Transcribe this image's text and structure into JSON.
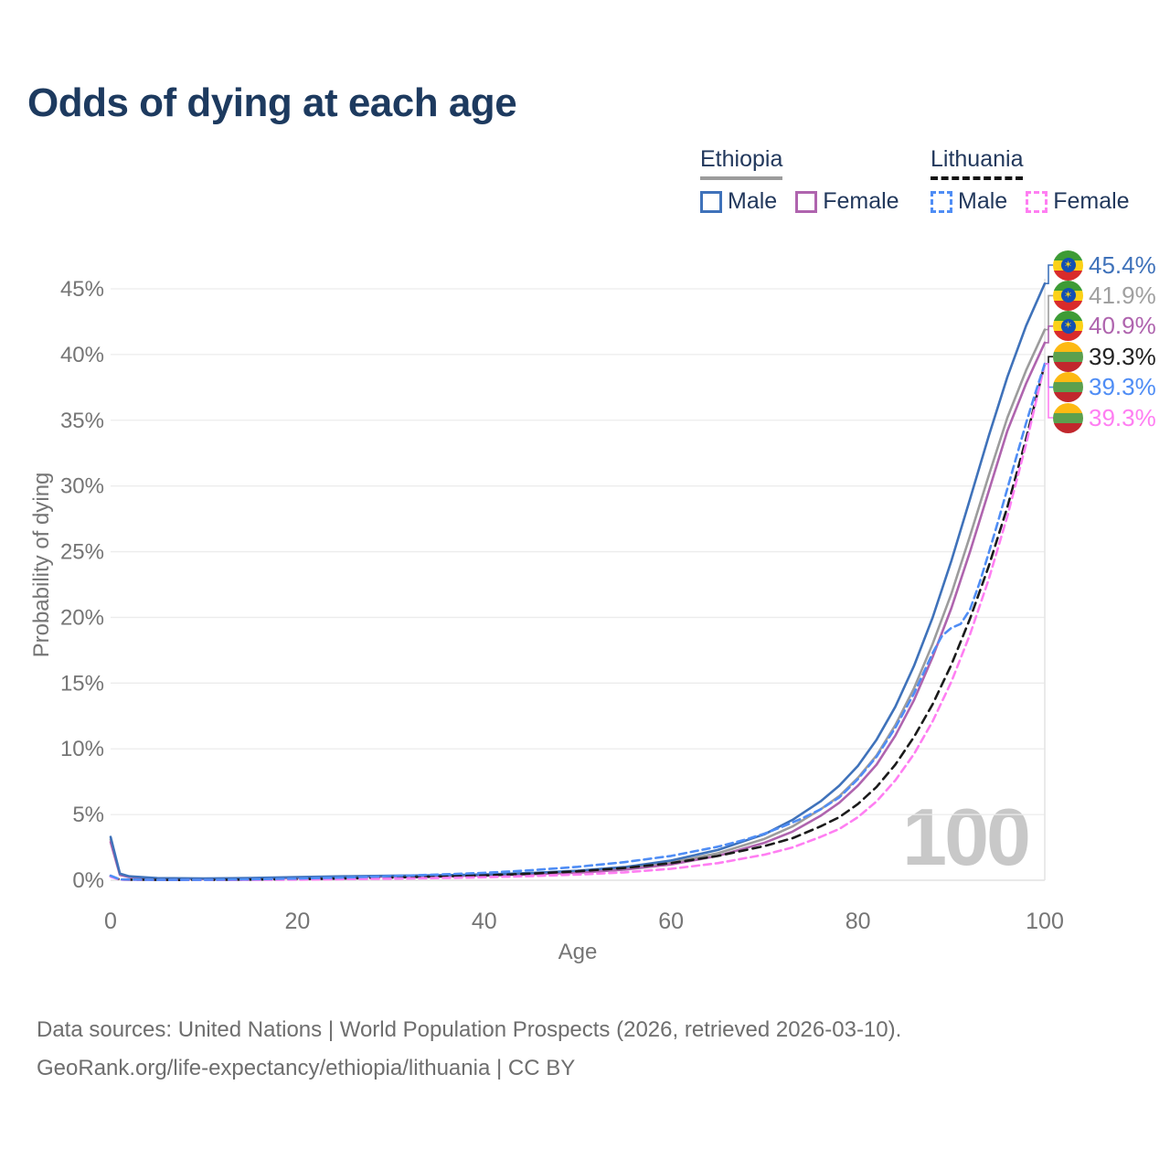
{
  "title": "Odds of dying at each age",
  "legend": {
    "groups": [
      {
        "label": "Ethiopia",
        "line_style": "solid",
        "underline_color": "#9c9c9c",
        "items": [
          {
            "label": "Male",
            "color": "#3f72ba"
          },
          {
            "label": "Female",
            "color": "#af64ae"
          }
        ]
      },
      {
        "label": "Lithuania",
        "line_style": "dashed",
        "underline_color": "#141414",
        "items": [
          {
            "label": "Male",
            "color": "#4f8df5"
          },
          {
            "label": "Female",
            "color": "#ff7ef2"
          }
        ]
      }
    ]
  },
  "chart_data": {
    "type": "line",
    "title": "Odds of dying at each age",
    "xlabel": "Age",
    "ylabel": "Probability of dying",
    "xlim": [
      0,
      100
    ],
    "ylim": [
      0,
      45
    ],
    "grid": "horizontal",
    "legend_position": "top-right",
    "crosshair_age": 100,
    "watermark": "100",
    "x_ticks": [
      {
        "value": 0,
        "label": "0"
      },
      {
        "value": 20,
        "label": "20"
      },
      {
        "value": 40,
        "label": "40"
      },
      {
        "value": 60,
        "label": "60"
      },
      {
        "value": 80,
        "label": "80"
      },
      {
        "value": 100,
        "label": "100"
      }
    ],
    "y_ticks": [
      {
        "value": 0,
        "label": "0%"
      },
      {
        "value": 5,
        "label": "5%"
      },
      {
        "value": 10,
        "label": "10%"
      },
      {
        "value": 15,
        "label": "15%"
      },
      {
        "value": 20,
        "label": "20%"
      },
      {
        "value": 25,
        "label": "25%"
      },
      {
        "value": 30,
        "label": "30%"
      },
      {
        "value": 35,
        "label": "35%"
      },
      {
        "value": 40,
        "label": "40%"
      },
      {
        "value": 45,
        "label": "45%"
      }
    ],
    "series": [
      {
        "id": "ethiopia-both",
        "country": "Ethiopia",
        "sex": "Both sexes",
        "color": "#9c9c9c",
        "dashed": false,
        "end_value_pct": 41.9,
        "end_label": "41.9%",
        "points": [
          [
            0,
            3.1
          ],
          [
            1,
            0.45
          ],
          [
            2,
            0.27
          ],
          [
            5,
            0.14
          ],
          [
            10,
            0.11
          ],
          [
            15,
            0.15
          ],
          [
            20,
            0.21
          ],
          [
            25,
            0.27
          ],
          [
            30,
            0.31
          ],
          [
            35,
            0.35
          ],
          [
            40,
            0.4
          ],
          [
            45,
            0.5
          ],
          [
            50,
            0.64
          ],
          [
            55,
            0.9
          ],
          [
            60,
            1.35
          ],
          [
            65,
            2.05
          ],
          [
            70,
            3.15
          ],
          [
            73,
            4.1
          ],
          [
            76,
            5.4
          ],
          [
            78,
            6.4
          ],
          [
            80,
            7.8
          ],
          [
            82,
            9.5
          ],
          [
            84,
            11.8
          ],
          [
            86,
            14.6
          ],
          [
            88,
            18.0
          ],
          [
            90,
            21.8
          ],
          [
            92,
            26.2
          ],
          [
            94,
            30.8
          ],
          [
            96,
            35.2
          ],
          [
            98,
            38.8
          ],
          [
            100,
            41.9
          ]
        ]
      },
      {
        "id": "ethiopia-female",
        "country": "Ethiopia",
        "sex": "Female",
        "color": "#af64ae",
        "dashed": false,
        "end_value_pct": 40.9,
        "end_label": "40.9%",
        "points": [
          [
            0,
            2.9
          ],
          [
            1,
            0.4
          ],
          [
            2,
            0.24
          ],
          [
            5,
            0.12
          ],
          [
            10,
            0.1
          ],
          [
            15,
            0.13
          ],
          [
            20,
            0.18
          ],
          [
            25,
            0.24
          ],
          [
            30,
            0.28
          ],
          [
            35,
            0.32
          ],
          [
            40,
            0.36
          ],
          [
            45,
            0.45
          ],
          [
            50,
            0.58
          ],
          [
            55,
            0.8
          ],
          [
            60,
            1.2
          ],
          [
            65,
            1.85
          ],
          [
            70,
            2.85
          ],
          [
            73,
            3.7
          ],
          [
            76,
            4.9
          ],
          [
            78,
            5.9
          ],
          [
            80,
            7.2
          ],
          [
            82,
            8.8
          ],
          [
            84,
            11.0
          ],
          [
            86,
            13.7
          ],
          [
            88,
            17.0
          ],
          [
            90,
            20.7
          ],
          [
            92,
            25.0
          ],
          [
            94,
            29.6
          ],
          [
            96,
            34.2
          ],
          [
            98,
            37.8
          ],
          [
            100,
            40.9
          ]
        ]
      },
      {
        "id": "ethiopia-male",
        "country": "Ethiopia",
        "sex": "Male",
        "color": "#3f72ba",
        "dashed": false,
        "end_value_pct": 45.4,
        "end_label": "45.4%",
        "points": [
          [
            0,
            3.3
          ],
          [
            1,
            0.5
          ],
          [
            2,
            0.3
          ],
          [
            5,
            0.16
          ],
          [
            10,
            0.13
          ],
          [
            15,
            0.17
          ],
          [
            20,
            0.24
          ],
          [
            25,
            0.3
          ],
          [
            30,
            0.34
          ],
          [
            35,
            0.38
          ],
          [
            40,
            0.44
          ],
          [
            45,
            0.55
          ],
          [
            50,
            0.72
          ],
          [
            55,
            1.0
          ],
          [
            60,
            1.5
          ],
          [
            65,
            2.3
          ],
          [
            70,
            3.5
          ],
          [
            73,
            4.6
          ],
          [
            76,
            6.0
          ],
          [
            78,
            7.2
          ],
          [
            80,
            8.7
          ],
          [
            82,
            10.7
          ],
          [
            84,
            13.2
          ],
          [
            86,
            16.3
          ],
          [
            88,
            20.0
          ],
          [
            90,
            24.3
          ],
          [
            92,
            29.0
          ],
          [
            94,
            33.8
          ],
          [
            96,
            38.3
          ],
          [
            98,
            42.2
          ],
          [
            100,
            45.4
          ]
        ]
      },
      {
        "id": "lithuania-both",
        "country": "Lithuania",
        "sex": "Both sexes",
        "color": "#1b1b1b",
        "dashed": true,
        "dash": "9 6",
        "end_value_pct": 39.3,
        "end_label": "39.3%",
        "points": [
          [
            0,
            0.3
          ],
          [
            1,
            0.05
          ],
          [
            5,
            0.03
          ],
          [
            10,
            0.02
          ],
          [
            15,
            0.05
          ],
          [
            20,
            0.08
          ],
          [
            25,
            0.13
          ],
          [
            30,
            0.2
          ],
          [
            35,
            0.28
          ],
          [
            40,
            0.37
          ],
          [
            45,
            0.5
          ],
          [
            50,
            0.68
          ],
          [
            55,
            0.93
          ],
          [
            60,
            1.3
          ],
          [
            65,
            1.85
          ],
          [
            70,
            2.6
          ],
          [
            73,
            3.2
          ],
          [
            76,
            4.1
          ],
          [
            78,
            4.8
          ],
          [
            80,
            5.8
          ],
          [
            82,
            7.1
          ],
          [
            84,
            8.8
          ],
          [
            86,
            10.9
          ],
          [
            88,
            13.4
          ],
          [
            90,
            16.4
          ],
          [
            92,
            19.9
          ],
          [
            94,
            23.9
          ],
          [
            96,
            28.4
          ],
          [
            98,
            33.6
          ],
          [
            100,
            39.3
          ]
        ]
      },
      {
        "id": "lithuania-female",
        "country": "Lithuania",
        "sex": "Female",
        "color": "#ff7ef2",
        "dashed": true,
        "dash": "8 5",
        "end_value_pct": 39.3,
        "end_label": "39.3%",
        "points": [
          [
            0,
            0.27
          ],
          [
            1,
            0.04
          ],
          [
            5,
            0.02
          ],
          [
            10,
            0.02
          ],
          [
            15,
            0.03
          ],
          [
            20,
            0.05
          ],
          [
            25,
            0.08
          ],
          [
            30,
            0.12
          ],
          [
            35,
            0.17
          ],
          [
            40,
            0.23
          ],
          [
            45,
            0.31
          ],
          [
            50,
            0.43
          ],
          [
            55,
            0.6
          ],
          [
            60,
            0.87
          ],
          [
            65,
            1.3
          ],
          [
            70,
            1.95
          ],
          [
            73,
            2.5
          ],
          [
            76,
            3.3
          ],
          [
            78,
            3.9
          ],
          [
            80,
            4.8
          ],
          [
            82,
            6.0
          ],
          [
            84,
            7.6
          ],
          [
            86,
            9.6
          ],
          [
            88,
            12.1
          ],
          [
            90,
            15.1
          ],
          [
            92,
            18.7
          ],
          [
            94,
            22.9
          ],
          [
            96,
            27.7
          ],
          [
            98,
            33.2
          ],
          [
            100,
            39.3
          ]
        ]
      },
      {
        "id": "lithuania-male",
        "country": "Lithuania",
        "sex": "Male",
        "color": "#4f8df5",
        "dashed": true,
        "dash": "8 5",
        "end_value_pct": 39.3,
        "end_label": "39.3%",
        "points": [
          [
            0,
            0.35
          ],
          [
            1,
            0.06
          ],
          [
            5,
            0.03
          ],
          [
            10,
            0.03
          ],
          [
            15,
            0.07
          ],
          [
            20,
            0.13
          ],
          [
            25,
            0.21
          ],
          [
            30,
            0.31
          ],
          [
            35,
            0.43
          ],
          [
            40,
            0.56
          ],
          [
            45,
            0.76
          ],
          [
            50,
            1.02
          ],
          [
            55,
            1.38
          ],
          [
            60,
            1.85
          ],
          [
            65,
            2.55
          ],
          [
            68,
            3.1
          ],
          [
            70,
            3.55
          ],
          [
            72,
            4.1
          ],
          [
            74,
            4.7
          ],
          [
            76,
            5.4
          ],
          [
            78,
            6.3
          ],
          [
            80,
            7.7
          ],
          [
            82,
            9.4
          ],
          [
            84,
            11.6
          ],
          [
            86,
            14.2
          ],
          [
            88,
            17.3
          ],
          [
            89,
            18.6
          ],
          [
            90,
            19.2
          ],
          [
            91,
            19.5
          ],
          [
            92,
            20.6
          ],
          [
            93,
            22.6
          ],
          [
            94,
            24.9
          ],
          [
            95,
            27.3
          ],
          [
            96,
            29.8
          ],
          [
            97,
            32.3
          ],
          [
            98,
            34.8
          ],
          [
            99,
            37.1
          ],
          [
            100,
            39.3
          ]
        ]
      }
    ]
  },
  "end_labels": [
    {
      "text": "45.4%",
      "color": "#3f72ba",
      "flag": "ethiopia",
      "series": "ethiopia-male"
    },
    {
      "text": "41.9%",
      "color": "#a0a0a0",
      "flag": "ethiopia",
      "series": "ethiopia-both"
    },
    {
      "text": "40.9%",
      "color": "#af64ae",
      "flag": "ethiopia",
      "series": "ethiopia-female"
    },
    {
      "text": "39.3%",
      "color": "#222222",
      "flag": "lithuania",
      "series": "lithuania-both"
    },
    {
      "text": "39.3%",
      "color": "#4f8df5",
      "flag": "lithuania",
      "series": "lithuania-male"
    },
    {
      "text": "39.3%",
      "color": "#ff7ef2",
      "flag": "lithuania",
      "series": "lithuania-female"
    }
  ],
  "flags": {
    "ethiopia": {
      "bands": [
        "#3d9b35",
        "#fcd116",
        "#d92b2b"
      ],
      "emblem_bg": "#1450b4",
      "emblem_star": "#fcd116"
    },
    "lithuania": {
      "bands": [
        "#fdb913",
        "#5ba04e",
        "#c1272d"
      ]
    }
  },
  "colors": {
    "title": "#1d3a5f",
    "tick_text": "#757575",
    "gridline": "#ececec",
    "zero_line": "#dcdcdc",
    "crosshair": "#e4e4e4",
    "watermark": "#c8c8c8",
    "footer": "#6e6e6e"
  },
  "footer": {
    "line1": "Data sources: United Nations | World Population Prospects (2026, retrieved 2026-03-10).",
    "line2": "GeoRank.org/life-expectancy/ethiopia/lithuania | CC BY"
  }
}
